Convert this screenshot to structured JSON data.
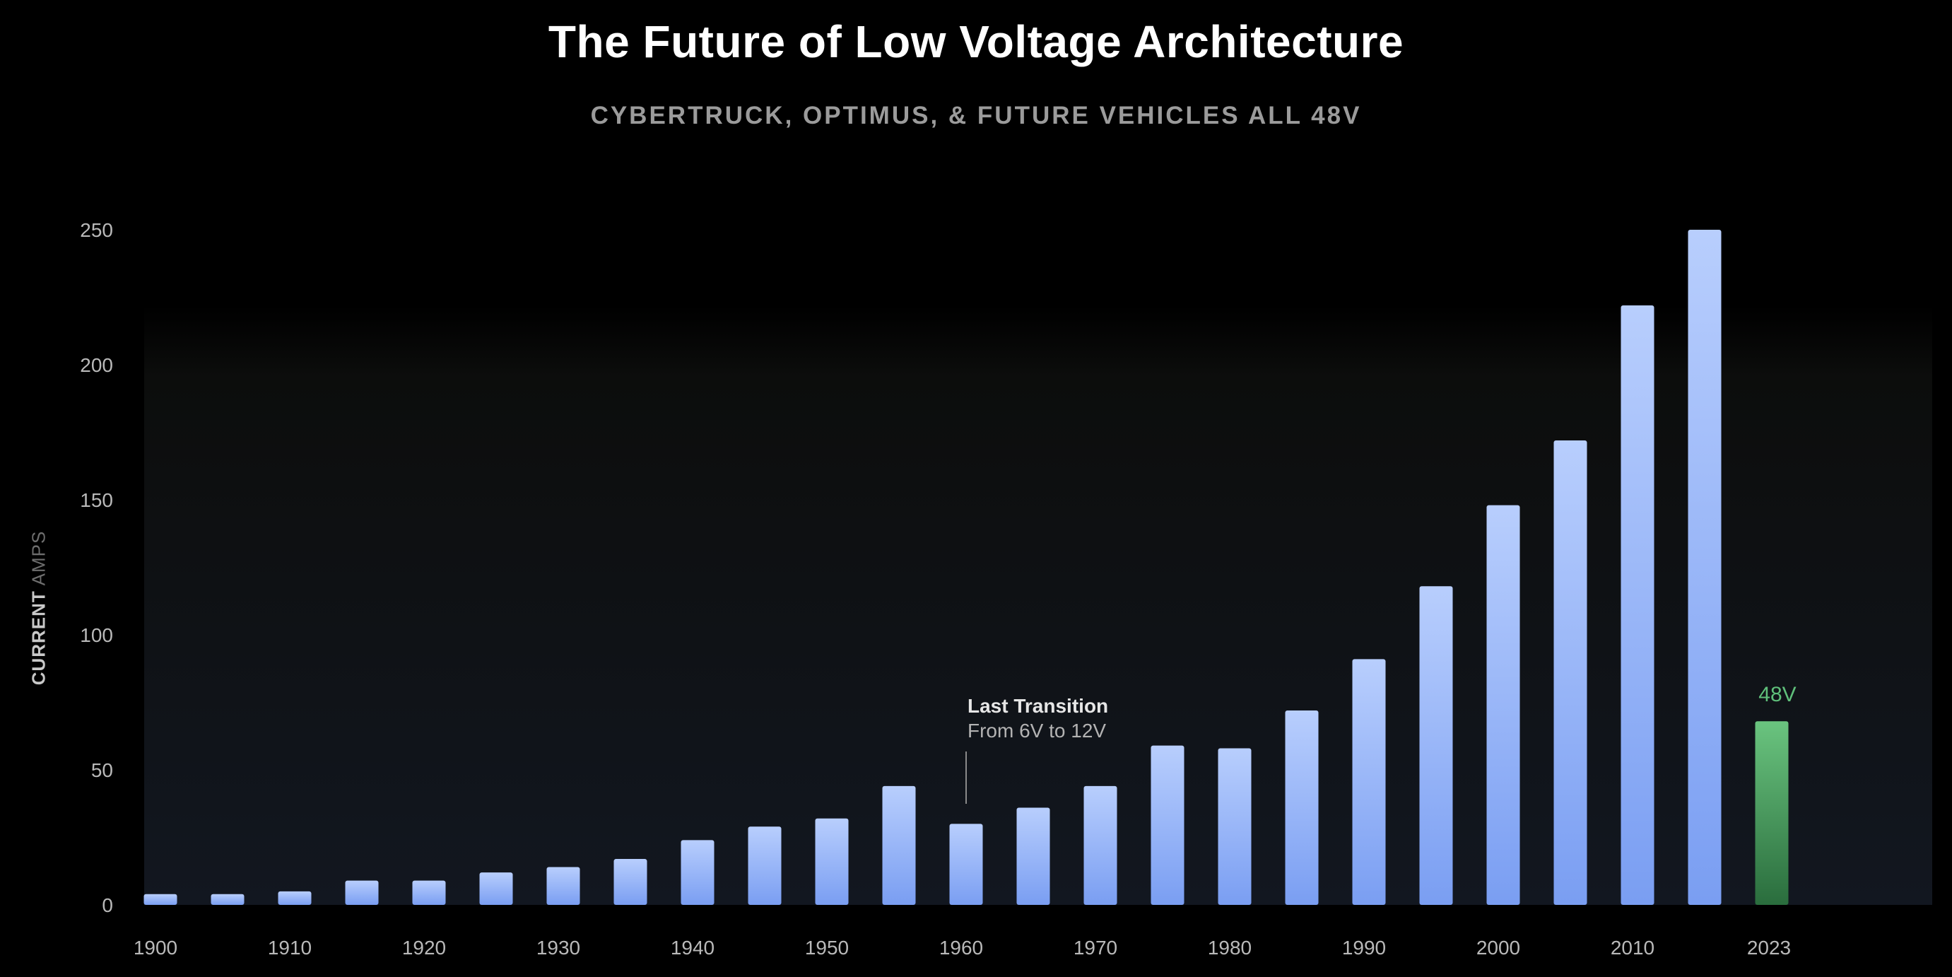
{
  "slide": {
    "title": "The Future of Low Voltage Architecture",
    "subtitle": "CYBERTRUCK, OPTIMUS, & FUTURE VEHICLES ALL 48V",
    "ylabel_strong": "CURRENT",
    "ylabel_weak": "AMPS"
  },
  "chart_data": {
    "type": "bar",
    "title": "The Future of Low Voltage Architecture",
    "subtitle": "CYBERTRUCK, OPTIMUS, & FUTURE VEHICLES ALL 48V",
    "ylabel": "CURRENT AMPS",
    "xlabel": "",
    "ylim": [
      0,
      250
    ],
    "yticks": [
      0,
      50,
      100,
      150,
      200,
      250
    ],
    "x_tick_labels": [
      "1900",
      "1910",
      "1920",
      "1930",
      "1940",
      "1950",
      "1960",
      "1970",
      "1980",
      "1990",
      "2000",
      "2010",
      "2023"
    ],
    "categories": [
      "1900",
      "1905",
      "1910",
      "1915",
      "1920",
      "1925",
      "1930",
      "1935",
      "1940",
      "1945",
      "1950",
      "1955",
      "1960",
      "1965",
      "1970",
      "1975",
      "1980",
      "1985",
      "1990",
      "1995",
      "2000",
      "2005",
      "2010",
      "2015",
      "2023"
    ],
    "values": [
      4,
      4,
      5,
      9,
      9,
      12,
      14,
      17,
      24,
      29,
      32,
      44,
      30,
      36,
      44,
      59,
      58,
      72,
      91,
      118,
      148,
      172,
      222,
      250,
      68
    ],
    "highlight": {
      "category": "2023",
      "label": "48V",
      "color": "#5fbf7a"
    },
    "annotation": {
      "x": "1960",
      "title": "Last Transition",
      "text": "From 6V to 12V"
    },
    "colors": {
      "bar_top": "#b8cefd",
      "bar_bottom": "#7a9ef2",
      "highlight_top": "#6ac47f",
      "highlight_bottom": "#2a6d3d",
      "highlight_tick": "#5a9a6a",
      "tick_text": "#b9b9b9"
    },
    "grid": false,
    "legend": "none"
  }
}
